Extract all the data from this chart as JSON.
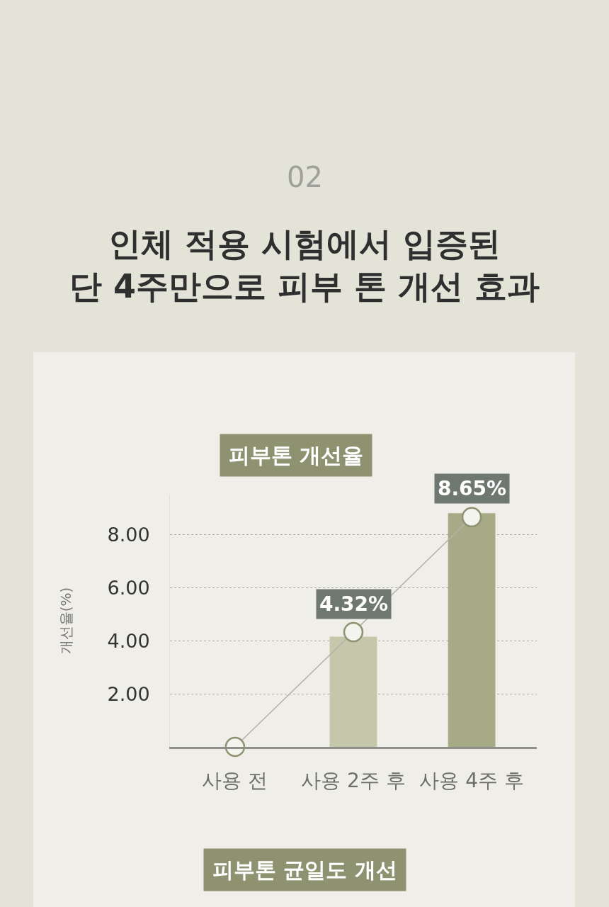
{
  "chart_data": {
    "type": "bar",
    "title": "인체 적용 시험에서 입증된\n단 4주만으로 피부 톤 개선 효과",
    "subtitle": "피부톤 개선율",
    "ylabel": "개선율(%)",
    "annotations": [
      "02",
      "피부톤 균일도 개선"
    ],
    "categories": [
      "사용 전",
      "사용 2주 후",
      "사용 4주 후"
    ],
    "series": [
      {
        "values": [
          0,
          4.15,
          8.8
        ],
        "colors": [
          "#c5c7aa",
          "#c5c7aa",
          "#a6aa86"
        ]
      },
      {
        "type": "line",
        "values": [
          0,
          4.32,
          8.65
        ],
        "color": "#b3b3aa",
        "marker": "circle",
        "value_labels": [
          null,
          "4.32%",
          "8.65%"
        ]
      }
    ],
    "ylim": [
      0,
      9.5
    ],
    "yticks": [
      {
        "value": 2,
        "label": "2.00"
      },
      {
        "value": 4,
        "label": "4.00"
      },
      {
        "value": 6,
        "label": "6.00"
      },
      {
        "value": 8,
        "label": "8.00"
      }
    ],
    "grid": "y"
  }
}
